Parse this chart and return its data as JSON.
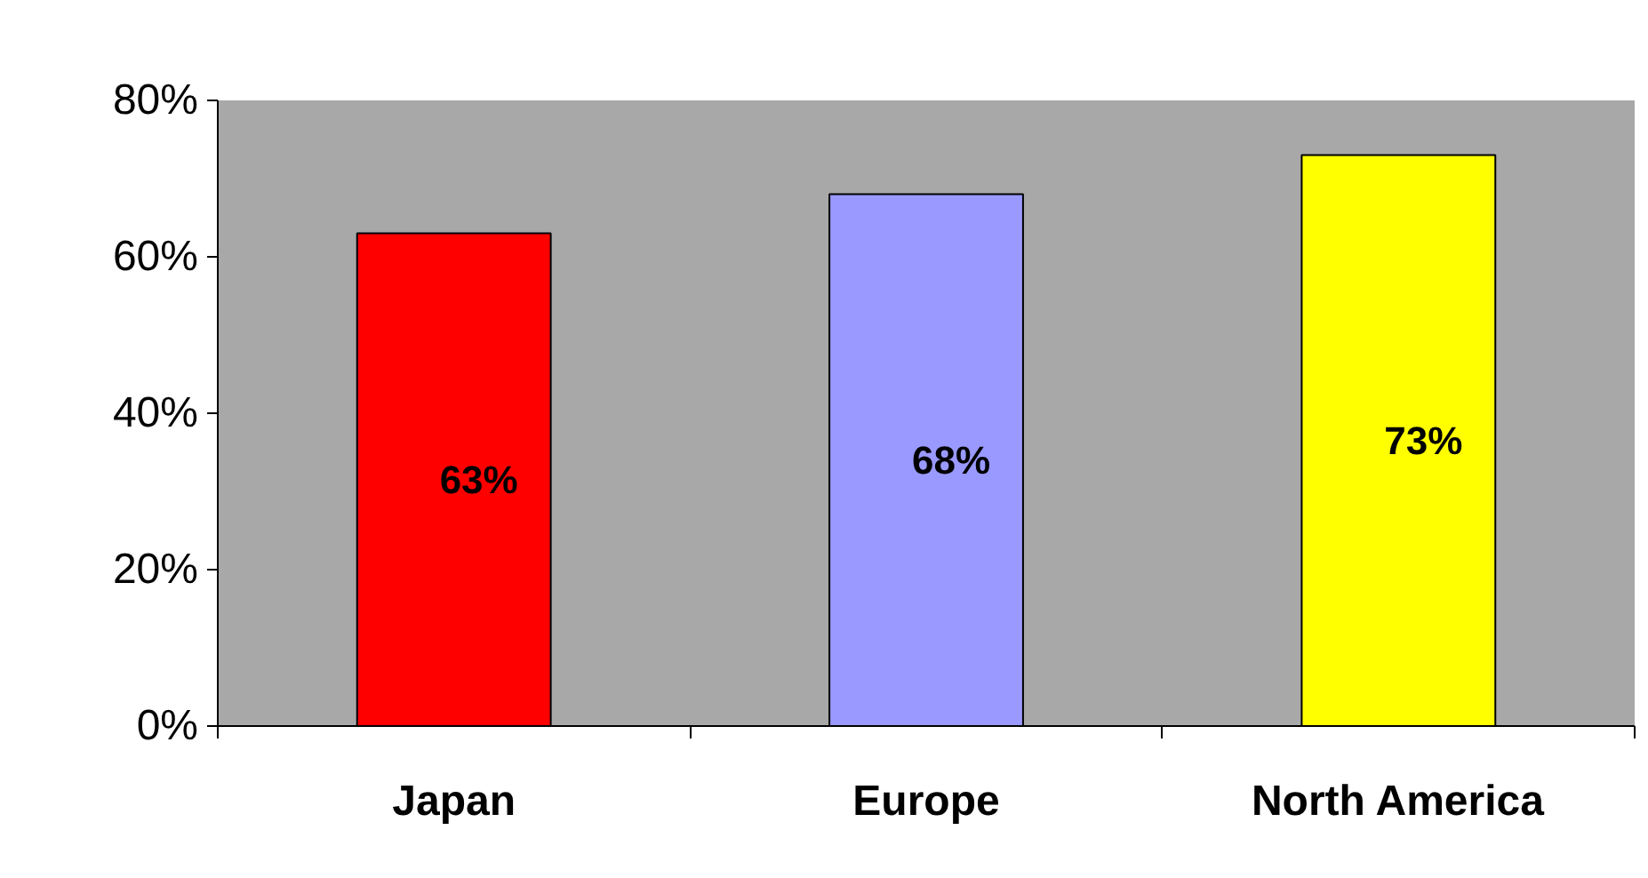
{
  "chart_data": {
    "type": "bar",
    "categories": [
      "Japan",
      "Europe",
      "North America"
    ],
    "values": [
      63,
      68,
      73
    ],
    "colors": [
      "#ff0000",
      "#9999ff",
      "#ffff00"
    ],
    "data_labels": true,
    "value_labels": [
      "63%",
      "68%",
      "73%"
    ],
    "ylim": [
      0,
      80
    ],
    "yticks": [
      {
        "value": 0,
        "label": "0%"
      },
      {
        "value": 20,
        "label": "20%"
      },
      {
        "value": 40,
        "label": "40%"
      },
      {
        "value": 60,
        "label": "60%"
      },
      {
        "value": 80,
        "label": "80%"
      }
    ],
    "grid": false
  }
}
